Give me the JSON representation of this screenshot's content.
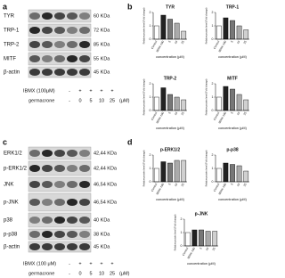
{
  "panel_labels": [
    "a",
    "b",
    "c",
    "d"
  ],
  "blots": [
    {
      "rows": [
        {
          "label": "TYR",
          "size": "60 KDa"
        },
        {
          "label": "TRP-1",
          "size": "72 KDa"
        },
        {
          "label": "TRP-2",
          "size": "85 KDa"
        },
        {
          "label": "MITF",
          "size": "55 KDa"
        },
        {
          "label": "β-actin",
          "size": "45 KDa"
        }
      ],
      "treatment": {
        "ibmx_label": "IBMX (100μM)",
        "ibmx": [
          "-",
          "+",
          "+",
          "+",
          "+"
        ],
        "germacrone_label": "germacrone",
        "germacrone": [
          "-",
          "0",
          "5",
          "10",
          "25"
        ],
        "unit": "(μM)"
      }
    },
    {
      "rows": [
        {
          "label": "ERK1/2",
          "size": "42,44 KDa"
        },
        {
          "label": "p-ERK1/2",
          "size": "42,44 KDa"
        },
        {
          "label": "JNK",
          "size": "46,54 KDa"
        },
        {
          "label": "p-JNK",
          "size": "46,54 KDa"
        },
        {
          "label": "p38",
          "size": "40 KDa"
        },
        {
          "label": "p-p38",
          "size": "38 KDa"
        },
        {
          "label": "β-actin",
          "size": "45 KDa"
        }
      ],
      "treatment": {
        "ibmx_label": "IBMX (100 μM)",
        "ibmx": [
          "-",
          "+",
          "+",
          "+",
          "+"
        ],
        "germacrone_label": "germacrone",
        "germacrone": [
          "-",
          "0",
          "5",
          "10",
          "25"
        ],
        "unit": "(μM)"
      }
    }
  ],
  "chart_data": [
    {
      "type": "bar",
      "title": "TYR",
      "y_label": "Relative protein level (Fold change)",
      "x_label": "concentration (μM)",
      "categories": [
        "Control",
        "IBMX-100",
        "5",
        "10",
        "25"
      ],
      "values": [
        1.0,
        1.8,
        1.5,
        1.2,
        0.6
      ],
      "colors": [
        "#ffffff",
        "#222222",
        "#777777",
        "#aaaaaa",
        "#d0d0d0"
      ],
      "ylim": [
        0,
        2
      ],
      "yticks": [
        0,
        1,
        2
      ]
    },
    {
      "type": "bar",
      "title": "TRP-1",
      "y_label": "Relative protein level (Fold change)",
      "x_label": "concentration (μM)",
      "categories": [
        "Control",
        "IBMX-100",
        "5",
        "10",
        "25"
      ],
      "values": [
        1.0,
        1.6,
        1.4,
        1.0,
        0.7
      ],
      "colors": [
        "#ffffff",
        "#222222",
        "#777777",
        "#aaaaaa",
        "#d0d0d0"
      ],
      "ylim": [
        0,
        2
      ],
      "yticks": [
        0,
        1,
        2
      ]
    },
    {
      "type": "bar",
      "title": "TRP-2",
      "y_label": "Relative protein level (Fold change)",
      "x_label": "concentration (μM)",
      "categories": [
        "Control",
        "IBMX-100",
        "5",
        "10",
        "25"
      ],
      "values": [
        1.0,
        1.7,
        1.2,
        1.0,
        0.8
      ],
      "colors": [
        "#ffffff",
        "#222222",
        "#777777",
        "#aaaaaa",
        "#d0d0d0"
      ],
      "ylim": [
        0,
        2
      ],
      "yticks": [
        0,
        1,
        2
      ]
    },
    {
      "type": "bar",
      "title": "MITF",
      "y_label": "Relative protein level (Fold change)",
      "x_label": "concentration (μM)",
      "categories": [
        "Control",
        "IBMX-100",
        "5",
        "10",
        "25"
      ],
      "values": [
        1.0,
        1.8,
        1.6,
        1.2,
        0.8
      ],
      "colors": [
        "#ffffff",
        "#222222",
        "#777777",
        "#aaaaaa",
        "#d0d0d0"
      ],
      "ylim": [
        0,
        2
      ],
      "yticks": [
        0,
        1,
        2
      ]
    },
    {
      "type": "bar",
      "title": "p-ERK1/2",
      "y_label": "Relative protein level (Fold change)",
      "x_label": "concentration (μM)",
      "categories": [
        "Control",
        "IBMX-100",
        "5",
        "10",
        "25"
      ],
      "values": [
        1.0,
        1.5,
        1.4,
        1.6,
        1.6
      ],
      "colors": [
        "#ffffff",
        "#222222",
        "#777777",
        "#aaaaaa",
        "#d0d0d0"
      ],
      "ylim": [
        0,
        2
      ],
      "yticks": [
        0,
        1,
        2
      ]
    },
    {
      "type": "bar",
      "title": "p-p38",
      "y_label": "Relative protein level (Fold change)",
      "x_label": "concentration (μM)",
      "categories": [
        "Control",
        "IBMX-100",
        "5",
        "10",
        "25"
      ],
      "values": [
        1.0,
        1.4,
        1.3,
        1.2,
        0.8
      ],
      "colors": [
        "#ffffff",
        "#222222",
        "#777777",
        "#aaaaaa",
        "#d0d0d0"
      ],
      "ylim": [
        0,
        2
      ],
      "yticks": [
        0,
        1,
        2
      ]
    },
    {
      "type": "bar",
      "title": "p-JNK",
      "y_label": "Relative protein level (Fold change)",
      "x_label": "concentration (μM)",
      "categories": [
        "Control",
        "IBMX-100",
        "5",
        "10",
        "25"
      ],
      "values": [
        1.0,
        1.2,
        1.2,
        1.1,
        1.1
      ],
      "colors": [
        "#ffffff",
        "#222222",
        "#777777",
        "#aaaaaa",
        "#d0d0d0"
      ],
      "ylim": [
        0,
        2
      ],
      "yticks": [
        0,
        1,
        2
      ]
    }
  ]
}
